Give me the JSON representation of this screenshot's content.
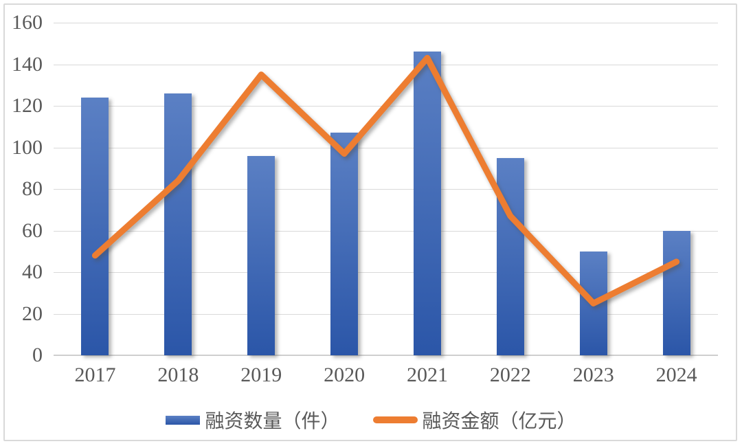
{
  "chart_data": {
    "type": "bar+line",
    "title": "",
    "xlabel": "",
    "ylabel": "",
    "categories": [
      "2017",
      "2018",
      "2019",
      "2020",
      "2021",
      "2022",
      "2023",
      "2024"
    ],
    "series": [
      {
        "name": "融资数量（件）",
        "type": "bar",
        "values": [
          124,
          126,
          96,
          107,
          146,
          95,
          50,
          60
        ],
        "color_top": "#5B80C4",
        "color_bottom": "#2B56A8"
      },
      {
        "name": "融资金额（亿元）",
        "type": "line",
        "values": [
          48,
          84,
          135,
          97,
          143,
          67,
          25,
          45
        ],
        "color": "#ED7D31"
      }
    ],
    "ylim": [
      0,
      160
    ],
    "yticks": [
      0,
      20,
      40,
      60,
      80,
      100,
      120,
      140,
      160
    ],
    "grid": true,
    "legend_position": "bottom"
  },
  "colors": {
    "text": "#595959",
    "grid": "#D9D9D9",
    "axis": "#CFCFCF",
    "frame_border": "#D9D9D9",
    "background": "#FFFFFF"
  }
}
